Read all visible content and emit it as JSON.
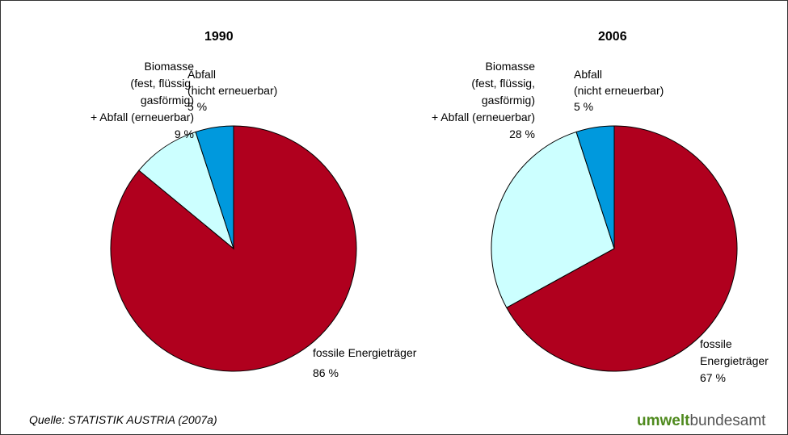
{
  "chart_data": [
    {
      "type": "pie",
      "title": "1990",
      "categories": [
        "fossile Energieträger",
        "Biomasse\n(fest, flüssig,\ngasförmig)\n+ Abfall (erneuerbar)",
        "Abfall\n(nicht erneuerbar)"
      ],
      "values": [
        86,
        9,
        5
      ],
      "value_labels": [
        "86 %",
        "9 %",
        "5 %"
      ],
      "colors": [
        "#b0001e",
        "#ccffff",
        "#0099dd"
      ]
    },
    {
      "type": "pie",
      "title": "2006",
      "categories": [
        "fossile\nEnergieträger",
        "Biomasse\n(fest, flüssig,\ngasförmig)\n+ Abfall (erneuerbar)",
        "Abfall\n(nicht erneuerbar)"
      ],
      "values": [
        67,
        28,
        5
      ],
      "value_labels": [
        "67 %",
        "28 %",
        "5 %"
      ],
      "colors": [
        "#b0001e",
        "#ccffff",
        "#0099dd"
      ]
    }
  ],
  "source": "Quelle: STATISTIK AUSTRIA (2007a)",
  "logo": {
    "bold": "umwelt",
    "regular": "bundesamt"
  }
}
